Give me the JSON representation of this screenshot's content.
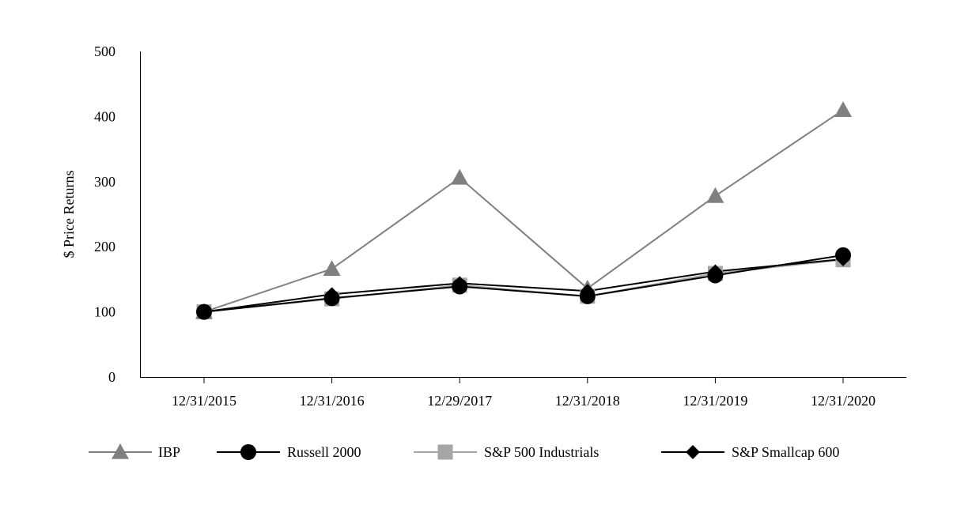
{
  "chart_data": {
    "type": "line",
    "title": "",
    "xlabel": "",
    "ylabel": "$ Price Returns",
    "categories": [
      "12/31/2015",
      "12/31/2016",
      "12/29/2017",
      "12/31/2018",
      "12/31/2019",
      "12/31/2020"
    ],
    "ylim": [
      0,
      500
    ],
    "yticks": [
      0,
      100,
      200,
      300,
      400,
      500
    ],
    "grid": false,
    "legend": "bottom",
    "series": [
      {
        "name": "IBP",
        "values": [
          100,
          166,
          306,
          136,
          278,
          410
        ],
        "marker": "triangle",
        "color": "#808080"
      },
      {
        "name": "Russell 2000",
        "values": [
          100,
          121,
          139,
          124,
          156,
          187
        ],
        "marker": "circle",
        "color": "#000000"
      },
      {
        "name": "S&P 500 Industrials",
        "values": [
          100,
          120,
          141,
          124,
          159,
          180
        ],
        "marker": "square",
        "color": "#a6a6a6"
      },
      {
        "name": "S&P Smallcap 600",
        "values": [
          100,
          127,
          144,
          132,
          162,
          181
        ],
        "marker": "diamond",
        "color": "#000000"
      }
    ]
  }
}
